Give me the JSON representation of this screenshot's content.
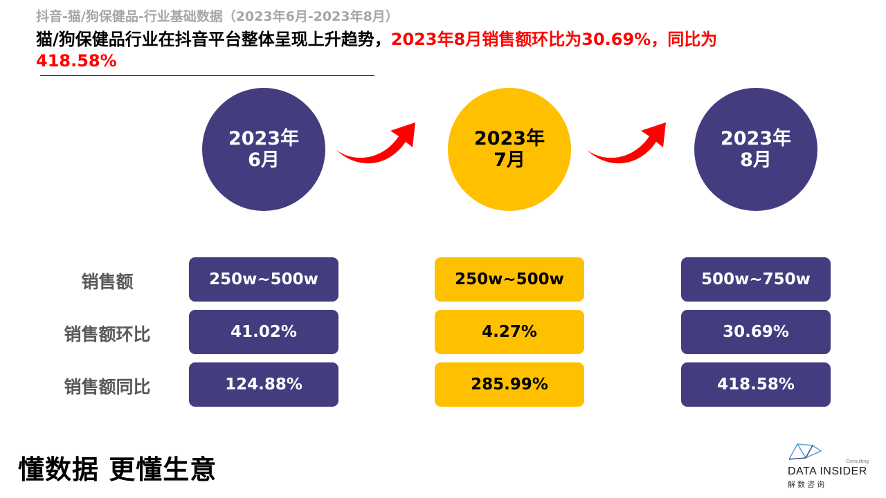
{
  "header": {
    "subtitle": "抖音-猫/狗保健品-行业基础数据（2023年6月-2023年8月）",
    "headline_black": "猫/狗保健品行业在抖音平台整体呈现上升趋势，",
    "headline_red": "2023年8月销售额环比为30.69%，同比为418.58%"
  },
  "periods": [
    {
      "year": "2023年",
      "month": "6月"
    },
    {
      "year": "2023年",
      "month": "7月"
    },
    {
      "year": "2023年",
      "month": "8月"
    }
  ],
  "row_labels": [
    "销售额",
    "销售额环比",
    "销售额同比"
  ],
  "table": [
    [
      "250w~500w",
      "250w~500w",
      "500w~750w"
    ],
    [
      "41.02%",
      "4.27%",
      "30.69%"
    ],
    [
      "124.88%",
      "285.99%",
      "418.58%"
    ]
  ],
  "footer": {
    "slogan": "懂数据 更懂生意",
    "logo_name": "DATA INSIDER",
    "logo_sub": "解数咨询",
    "logo_consulting": "Consulting"
  },
  "colors": {
    "purple": "#433d7f",
    "yellow": "#ffc000",
    "red": "#ff0000",
    "label_gray": "#595959"
  },
  "icons": [
    "curved-arrow-icon",
    "data-insider-logo-icon"
  ]
}
